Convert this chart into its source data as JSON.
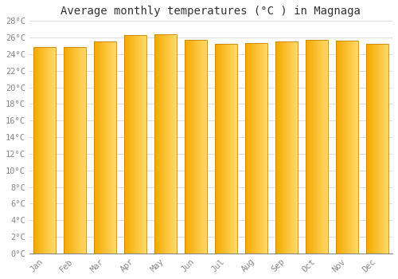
{
  "title": "Average monthly temperatures (°C ) in Magnaga",
  "months": [
    "Jan",
    "Feb",
    "Mar",
    "Apr",
    "May",
    "Jun",
    "Jul",
    "Aug",
    "Sep",
    "Oct",
    "Nov",
    "Dec"
  ],
  "values": [
    24.9,
    24.9,
    25.5,
    26.3,
    26.4,
    25.7,
    25.2,
    25.3,
    25.5,
    25.7,
    25.6,
    25.2
  ],
  "bar_color_left": "#F5A800",
  "bar_color_right": "#FFD966",
  "ylim": [
    0,
    28
  ],
  "yticks": [
    0,
    2,
    4,
    6,
    8,
    10,
    12,
    14,
    16,
    18,
    20,
    22,
    24,
    26,
    28
  ],
  "background_color": "#FFFFFF",
  "plot_bg_color": "#FFFFFF",
  "grid_color": "#DDDDDD",
  "title_fontsize": 10,
  "tick_fontsize": 7.5,
  "font_family": "monospace",
  "bar_width": 0.72,
  "border_color": "#AAAAAA"
}
